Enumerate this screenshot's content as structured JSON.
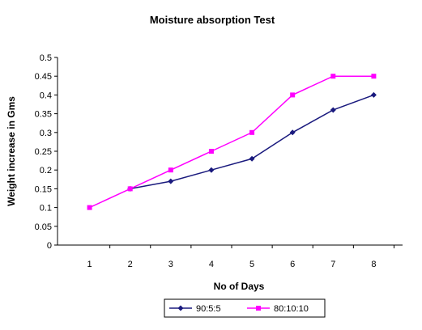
{
  "chart_data": {
    "type": "line",
    "title": "Moisture absorption Test",
    "xlabel": "No of Days",
    "ylabel": "Weight increase in Gms",
    "categories": [
      "1",
      "2",
      "3",
      "4",
      "5",
      "6",
      "7",
      "8"
    ],
    "ylim": [
      0,
      0.5
    ],
    "yticks": [
      "0",
      "0.05",
      "0.1",
      "0.15",
      "0.2",
      "0.25",
      "0.3",
      "0.35",
      "0.4",
      "0.45",
      "0.5"
    ],
    "grid": false,
    "legend_position": "bottom",
    "series": [
      {
        "name": "90:5:5",
        "color": "#1a1a7e",
        "marker": "diamond",
        "values": [
          null,
          0.15,
          0.17,
          0.2,
          0.23,
          0.3,
          0.36,
          0.4
        ]
      },
      {
        "name": "80:10:10",
        "color": "#ff00ff",
        "marker": "square",
        "values": [
          0.1,
          0.15,
          0.2,
          0.25,
          0.3,
          0.4,
          0.45,
          0.45
        ]
      }
    ]
  }
}
